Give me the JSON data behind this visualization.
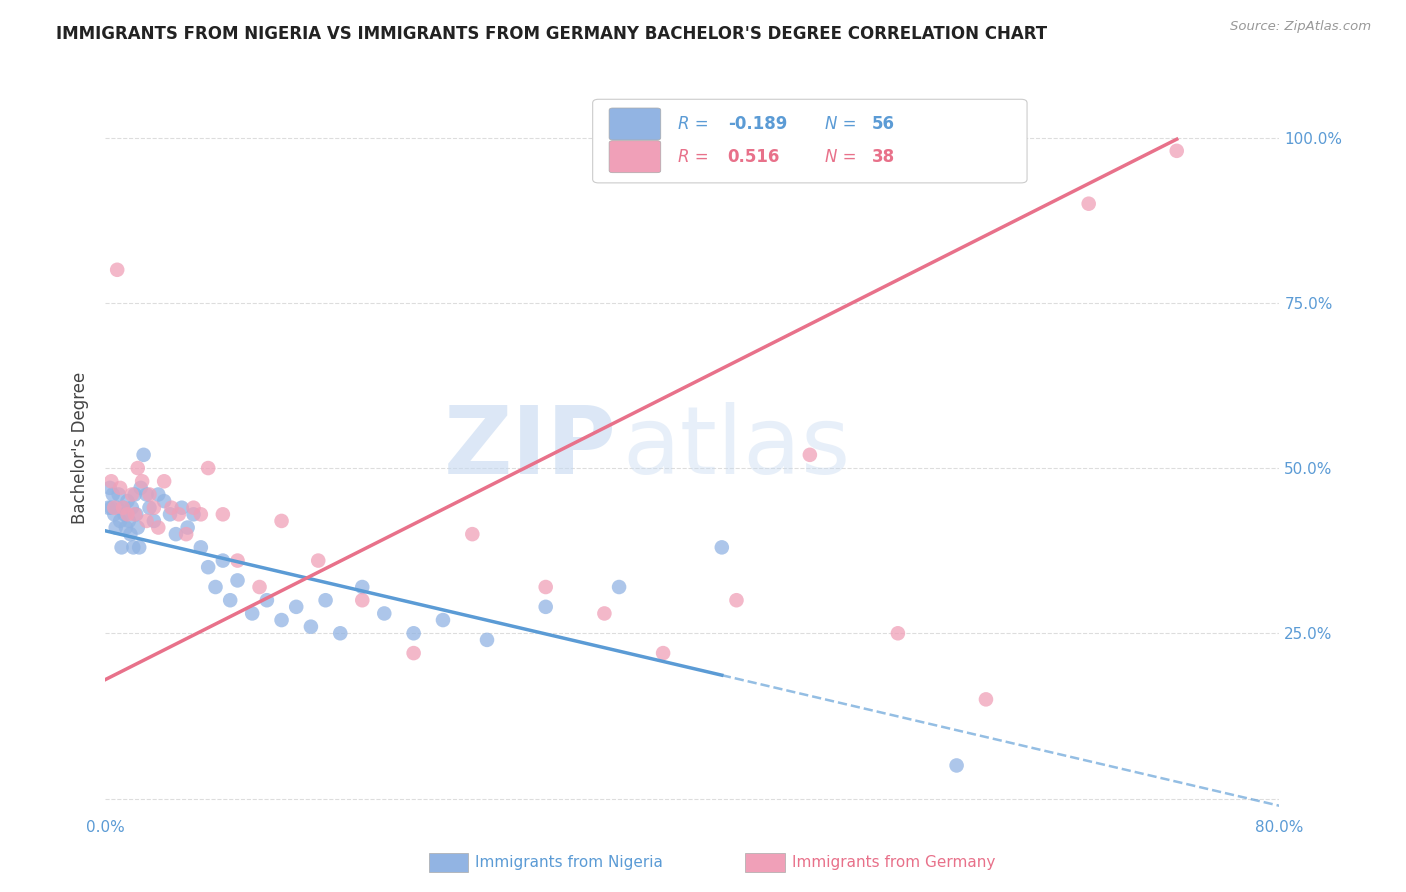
{
  "title": "IMMIGRANTS FROM NIGERIA VS IMMIGRANTS FROM GERMANY BACHELOR'S DEGREE CORRELATION CHART",
  "source": "Source: ZipAtlas.com",
  "ylabel": "Bachelor's Degree",
  "xlim": [
    0.0,
    0.8
  ],
  "ylim": [
    -0.02,
    1.08
  ],
  "y_ticks_right": [
    0.0,
    0.25,
    0.5,
    0.75,
    1.0
  ],
  "y_tick_labels_right": [
    "",
    "25.0%",
    "50.0%",
    "75.0%",
    "100.0%"
  ],
  "x_ticks": [
    0.0,
    0.1,
    0.2,
    0.3,
    0.4,
    0.5,
    0.6,
    0.7,
    0.8
  ],
  "nigeria_color": "#92b4e3",
  "germany_color": "#f0a0b8",
  "nigeria_R": -0.189,
  "nigeria_N": 56,
  "germany_R": 0.516,
  "germany_N": 38,
  "watermark_zip": "ZIP",
  "watermark_atlas": "atlas",
  "legend_label_nigeria": "Immigrants from Nigeria",
  "legend_label_germany": "Immigrants from Germany",
  "nigeria_x": [
    0.002,
    0.003,
    0.004,
    0.005,
    0.006,
    0.007,
    0.008,
    0.009,
    0.01,
    0.011,
    0.012,
    0.013,
    0.014,
    0.015,
    0.016,
    0.017,
    0.018,
    0.019,
    0.02,
    0.021,
    0.022,
    0.023,
    0.024,
    0.026,
    0.028,
    0.03,
    0.033,
    0.036,
    0.04,
    0.044,
    0.048,
    0.052,
    0.056,
    0.06,
    0.065,
    0.07,
    0.075,
    0.08,
    0.085,
    0.09,
    0.1,
    0.11,
    0.12,
    0.13,
    0.14,
    0.15,
    0.16,
    0.175,
    0.19,
    0.21,
    0.23,
    0.26,
    0.3,
    0.35,
    0.42,
    0.58
  ],
  "nigeria_y": [
    0.44,
    0.47,
    0.44,
    0.46,
    0.43,
    0.41,
    0.44,
    0.46,
    0.42,
    0.38,
    0.44,
    0.43,
    0.41,
    0.45,
    0.42,
    0.4,
    0.44,
    0.38,
    0.46,
    0.43,
    0.41,
    0.38,
    0.47,
    0.52,
    0.46,
    0.44,
    0.42,
    0.46,
    0.45,
    0.43,
    0.4,
    0.44,
    0.41,
    0.43,
    0.38,
    0.35,
    0.32,
    0.36,
    0.3,
    0.33,
    0.28,
    0.3,
    0.27,
    0.29,
    0.26,
    0.3,
    0.25,
    0.32,
    0.28,
    0.25,
    0.27,
    0.24,
    0.29,
    0.32,
    0.38,
    0.05
  ],
  "germany_x": [
    0.004,
    0.006,
    0.008,
    0.01,
    0.012,
    0.015,
    0.018,
    0.02,
    0.022,
    0.025,
    0.028,
    0.03,
    0.033,
    0.036,
    0.04,
    0.045,
    0.05,
    0.055,
    0.06,
    0.065,
    0.07,
    0.08,
    0.09,
    0.105,
    0.12,
    0.145,
    0.175,
    0.21,
    0.25,
    0.3,
    0.34,
    0.38,
    0.43,
    0.48,
    0.54,
    0.6,
    0.67,
    0.73
  ],
  "germany_y": [
    0.48,
    0.44,
    0.8,
    0.47,
    0.44,
    0.43,
    0.46,
    0.43,
    0.5,
    0.48,
    0.42,
    0.46,
    0.44,
    0.41,
    0.48,
    0.44,
    0.43,
    0.4,
    0.44,
    0.43,
    0.5,
    0.43,
    0.36,
    0.32,
    0.42,
    0.36,
    0.3,
    0.22,
    0.4,
    0.32,
    0.28,
    0.22,
    0.3,
    0.52,
    0.25,
    0.15,
    0.9,
    0.98
  ],
  "background_color": "#ffffff",
  "grid_color": "#dddddd",
  "nigeria_line_color": "#5b9bd5",
  "germany_line_color": "#e8718a",
  "nigeria_line_intercept": 0.405,
  "nigeria_line_slope": -0.52,
  "germany_line_intercept": 0.18,
  "germany_line_slope": 1.12
}
